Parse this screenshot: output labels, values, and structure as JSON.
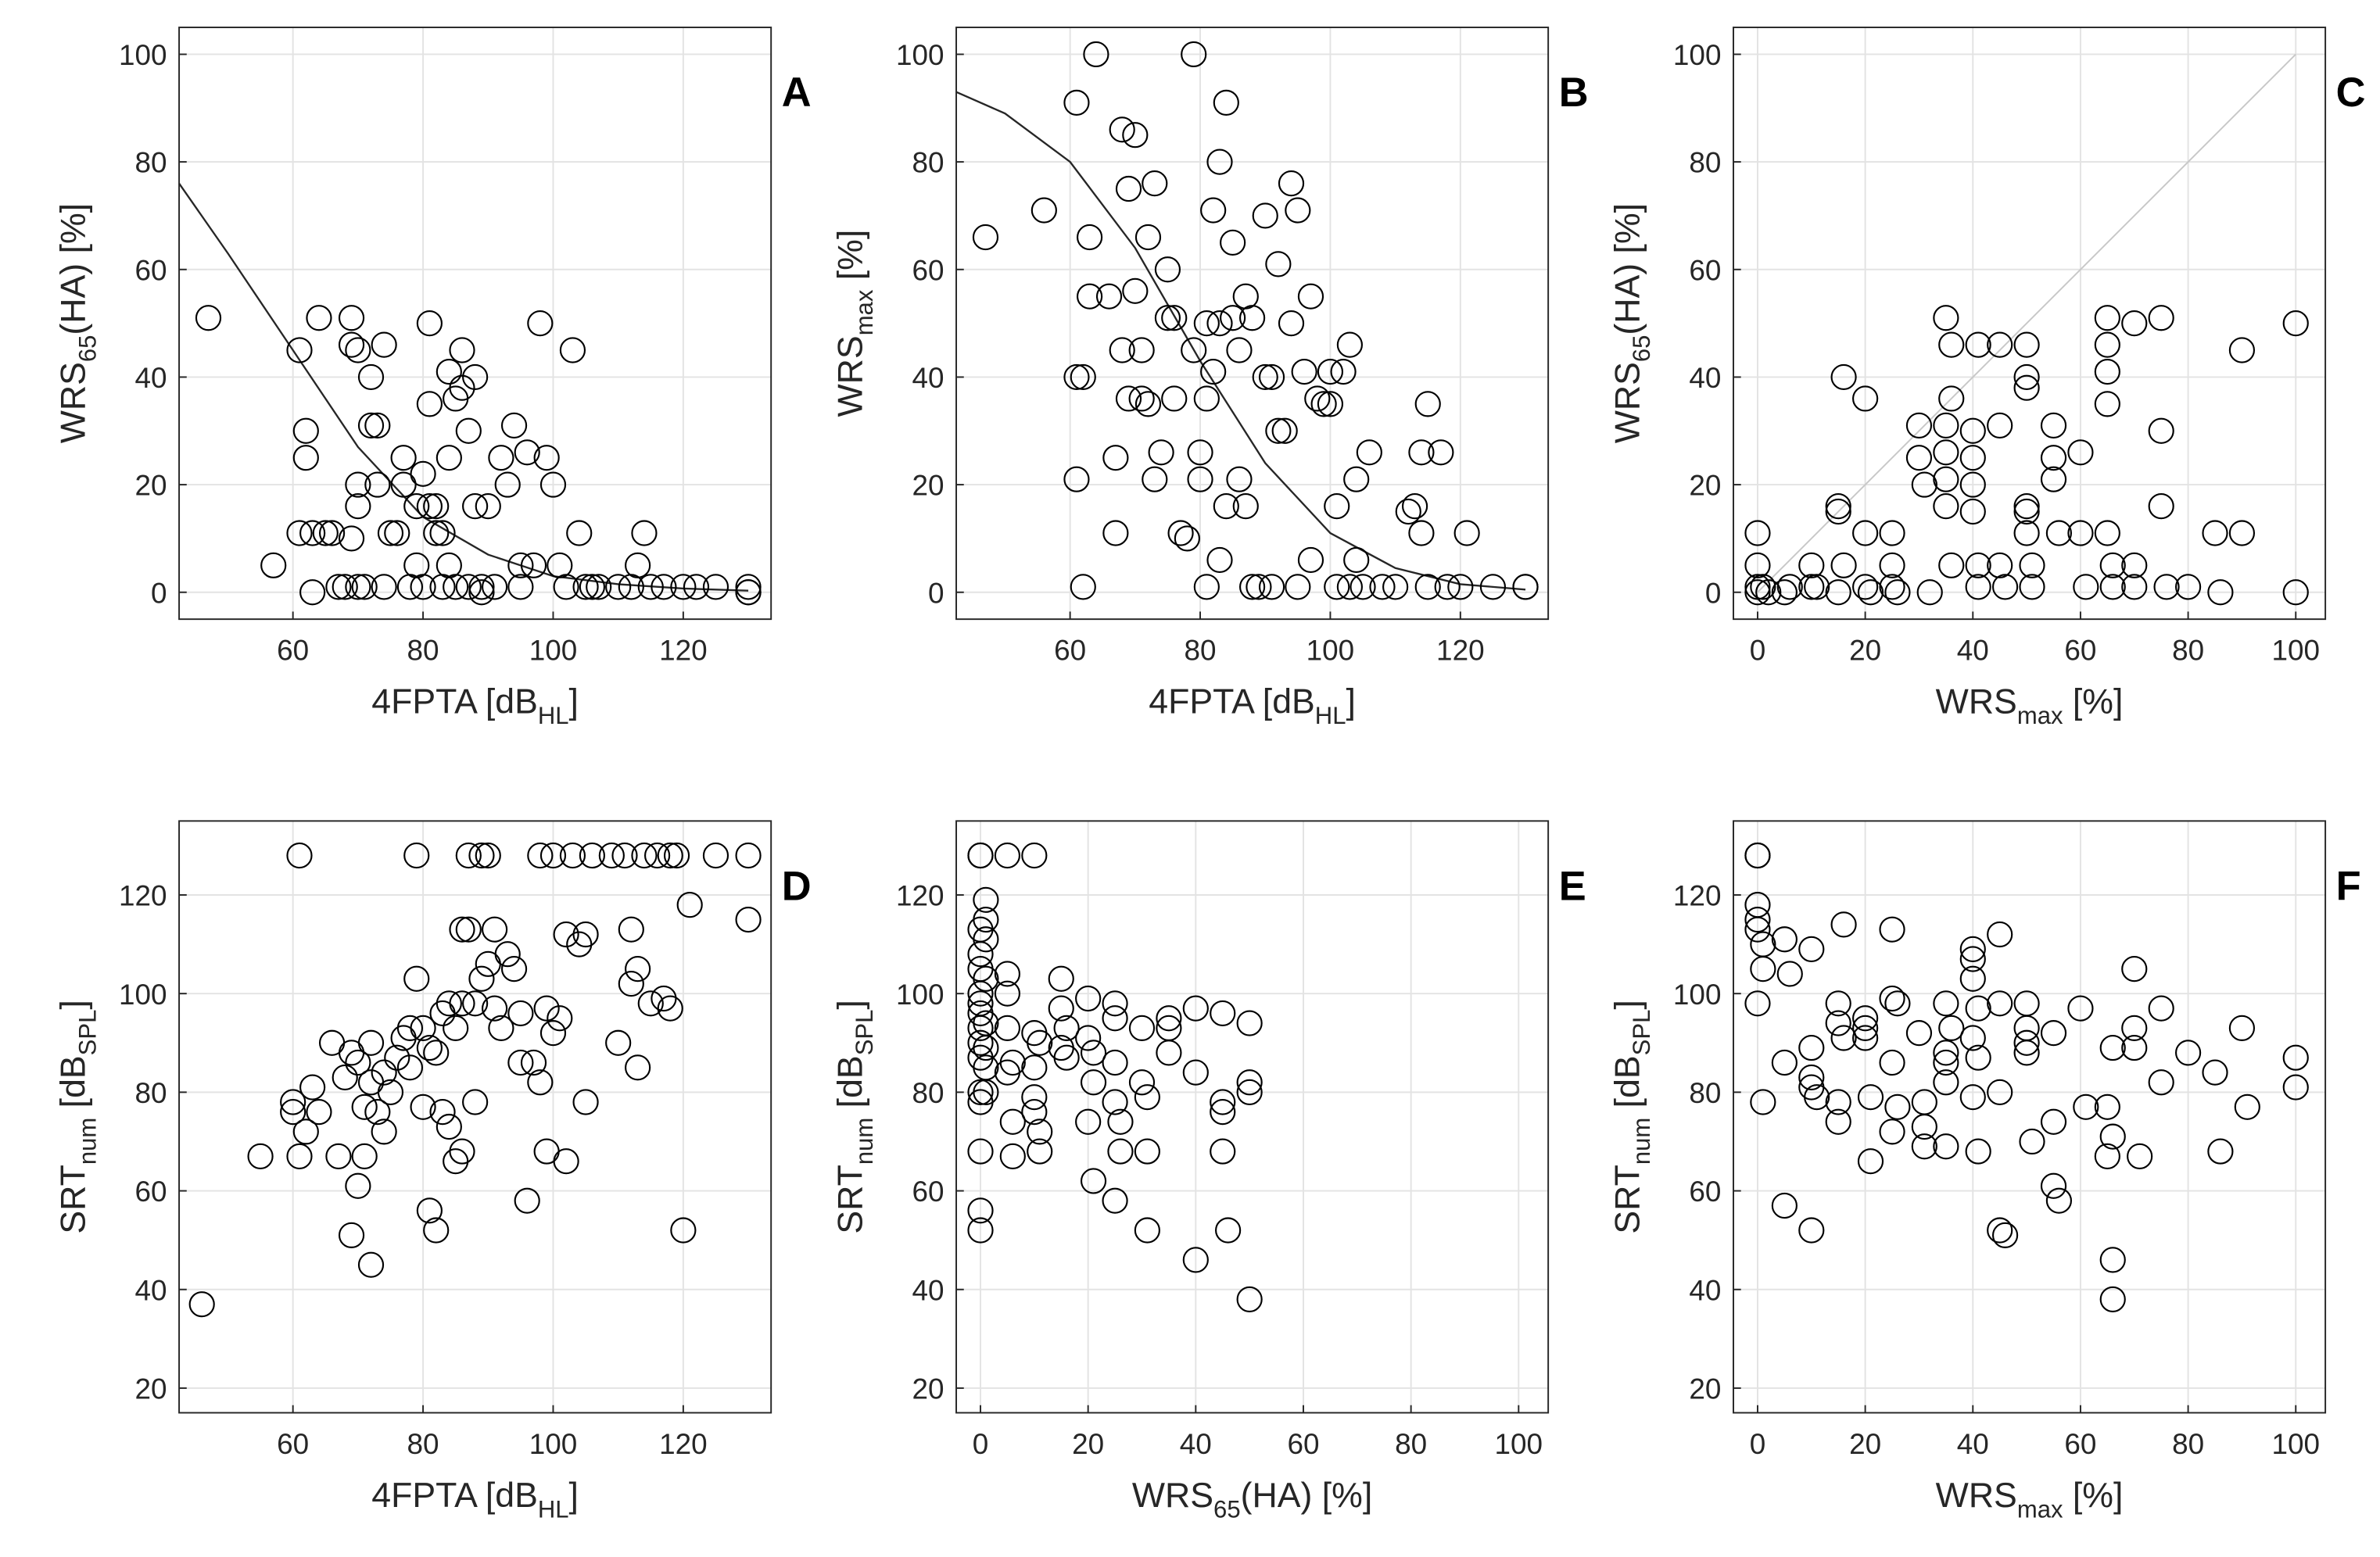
{
  "chart_data": [
    {
      "type": "scatter",
      "panel_label": "A",
      "xlabel": [
        "4FPTA [dB",
        "HL",
        "]"
      ],
      "ylabel": [
        "WRS",
        "65",
        "(HA) [%]"
      ],
      "xlim": [
        42.5,
        133.5
      ],
      "ylim": [
        -5,
        105
      ],
      "xticks": [
        60,
        80,
        100,
        120
      ],
      "yticks": [
        0,
        20,
        40,
        60,
        80,
        100
      ],
      "grid": true,
      "color": "#000000",
      "x": [
        47,
        57,
        61,
        61,
        62,
        62,
        63,
        63,
        64,
        65,
        66,
        67,
        68,
        69,
        69,
        69,
        70,
        70,
        70,
        70,
        71,
        72,
        72,
        73,
        73,
        74,
        74,
        75,
        76,
        77,
        77,
        78,
        79,
        79,
        80,
        80,
        81,
        81,
        81,
        82,
        82,
        83,
        83,
        84,
        84,
        84,
        85,
        85,
        86,
        86,
        87,
        87,
        88,
        88,
        89,
        89,
        90,
        91,
        92,
        93,
        94,
        95,
        95,
        96,
        97,
        98,
        99,
        100,
        101,
        102,
        103,
        104,
        105,
        106,
        107,
        110,
        112,
        113,
        114,
        115,
        117,
        120,
        122,
        125,
        130,
        130,
        130
      ],
      "values": [
        51,
        5,
        45,
        11,
        25,
        30,
        11,
        0,
        51,
        11,
        11,
        1,
        1,
        10,
        46,
        51,
        45,
        20,
        16,
        1,
        1,
        40,
        31,
        31,
        20,
        46,
        1,
        11,
        11,
        25,
        20,
        1,
        16,
        5,
        22,
        1,
        50,
        16,
        35,
        16,
        11,
        11,
        1,
        41,
        25,
        5,
        36,
        1,
        38,
        45,
        30,
        1,
        40,
        16,
        1,
        0,
        16,
        1,
        25,
        20,
        31,
        1,
        5,
        26,
        5,
        50,
        25,
        20,
        5,
        1,
        45,
        11,
        1,
        1,
        1,
        1,
        1,
        5,
        11,
        1,
        1,
        1,
        1,
        1,
        0,
        1,
        0
      ],
      "curve": {
        "x": [
          42.5,
          50,
          60,
          70,
          80,
          90,
          100,
          110,
          120,
          130
        ],
        "values": [
          76,
          63,
          45,
          27,
          14,
          7,
          3,
          1.5,
          0.7,
          0.3
        ]
      }
    },
    {
      "type": "scatter",
      "panel_label": "B",
      "xlabel": [
        "4FPTA [dB",
        "HL",
        "]"
      ],
      "ylabel": [
        "WRS",
        "max",
        " [%]"
      ],
      "xlim": [
        42.5,
        133.5
      ],
      "ylim": [
        -5,
        105
      ],
      "xticks": [
        60,
        80,
        100,
        120
      ],
      "yticks": [
        0,
        20,
        40,
        60,
        80,
        100
      ],
      "grid": true,
      "color": "#000000",
      "x": [
        47,
        56,
        61,
        61,
        61,
        62,
        62,
        63,
        63,
        64,
        66,
        67,
        67,
        68,
        68,
        69,
        69,
        70,
        70,
        71,
        71,
        72,
        72,
        73,
        73,
        74,
        75,
        75,
        76,
        76,
        77,
        78,
        79,
        79,
        80,
        80,
        81,
        81,
        81,
        82,
        82,
        83,
        83,
        83,
        84,
        84,
        85,
        85,
        86,
        86,
        87,
        87,
        88,
        88,
        89,
        90,
        90,
        91,
        91,
        92,
        92,
        93,
        94,
        94,
        95,
        95,
        96,
        97,
        97,
        98,
        99,
        100,
        100,
        101,
        101,
        102,
        103,
        103,
        104,
        104,
        105,
        106,
        108,
        110,
        112,
        113,
        114,
        114,
        115,
        115,
        117,
        118,
        120,
        121,
        125,
        130,
        130
      ],
      "values": [
        66,
        71,
        91,
        21,
        40,
        40,
        1,
        55,
        66,
        100,
        55,
        11,
        25,
        45,
        86,
        36,
        75,
        85,
        56,
        45,
        36,
        66,
        35,
        76,
        21,
        26,
        51,
        60,
        51,
        36,
        11,
        10,
        100,
        45,
        26,
        21,
        36,
        50,
        1,
        41,
        71,
        6,
        80,
        50,
        91,
        16,
        65,
        51,
        21,
        45,
        55,
        16,
        51,
        1,
        1,
        40,
        70,
        40,
        1,
        61,
        30,
        30,
        50,
        76,
        71,
        1,
        41,
        55,
        6,
        36,
        35,
        35,
        41,
        16,
        1,
        41,
        46,
        1,
        21,
        6,
        1,
        26,
        1,
        1,
        15,
        16,
        11,
        26,
        35,
        1,
        26,
        1,
        1,
        11,
        1,
        1,
        1
      ],
      "curve": {
        "x": [
          42.5,
          50,
          60,
          70,
          80,
          90,
          100,
          110,
          120,
          130
        ],
        "values": [
          93,
          89,
          80,
          64,
          43,
          24,
          11,
          4.5,
          1.5,
          0.5
        ]
      }
    },
    {
      "type": "scatter",
      "panel_label": "C",
      "xlabel": [
        "WRS",
        "max",
        " [%]"
      ],
      "ylabel": [
        "WRS",
        "65",
        "(HA) [%]"
      ],
      "xlim": [
        -4.5,
        105.5
      ],
      "ylim": [
        -5,
        105
      ],
      "xticks": [
        0,
        20,
        40,
        60,
        80,
        100
      ],
      "yticks": [
        0,
        20,
        40,
        60,
        80,
        100
      ],
      "grid": true,
      "color": "#000000",
      "x": [
        0,
        0,
        0,
        0,
        1,
        2,
        5,
        6,
        10,
        10,
        11,
        15,
        15,
        15,
        16,
        16,
        20,
        20,
        20,
        21,
        25,
        25,
        25,
        26,
        30,
        30,
        31,
        32,
        35,
        35,
        35,
        35,
        35,
        36,
        36,
        36,
        40,
        40,
        40,
        40,
        41,
        41,
        41,
        45,
        45,
        45,
        46,
        50,
        50,
        50,
        50,
        50,
        50,
        51,
        51,
        55,
        55,
        55,
        56,
        60,
        60,
        61,
        65,
        65,
        65,
        65,
        65,
        66,
        66,
        70,
        70,
        70,
        75,
        75,
        75,
        76,
        80,
        85,
        86,
        90,
        90,
        100,
        100
      ],
      "values": [
        11,
        5,
        1,
        0,
        1,
        0,
        0,
        1,
        5,
        1,
        1,
        16,
        15,
        0,
        40,
        5,
        36,
        11,
        1,
        0,
        11,
        1,
        5,
        0,
        31,
        25,
        20,
        0,
        51,
        31,
        26,
        21,
        16,
        46,
        36,
        5,
        30,
        25,
        15,
        20,
        46,
        1,
        5,
        46,
        31,
        5,
        1,
        40,
        38,
        46,
        16,
        15,
        11,
        5,
        1,
        31,
        25,
        21,
        11,
        26,
        11,
        1,
        51,
        46,
        41,
        35,
        11,
        5,
        1,
        50,
        5,
        1,
        51,
        30,
        16,
        1,
        1,
        11,
        0,
        45,
        11,
        50,
        0
      ],
      "reference_line": {
        "x": [
          0,
          100
        ],
        "values": [
          0,
          100
        ]
      }
    },
    {
      "type": "scatter",
      "panel_label": "D",
      "xlabel": [
        "4FPTA [dB",
        "HL",
        "]"
      ],
      "ylabel": [
        "SRT",
        "num",
        " [dB",
        "SPL",
        "]"
      ],
      "xlim": [
        42.5,
        133.5
      ],
      "ylim": [
        15,
        135
      ],
      "xticks": [
        60,
        80,
        100,
        120
      ],
      "yticks": [
        20,
        40,
        60,
        80,
        100,
        120
      ],
      "grid": true,
      "color": "#000000",
      "x": [
        46,
        55,
        60,
        60,
        61,
        61,
        62,
        63,
        64,
        66,
        67,
        68,
        69,
        69,
        70,
        70,
        71,
        71,
        72,
        72,
        72,
        73,
        74,
        74,
        75,
        76,
        77,
        78,
        78,
        79,
        79,
        80,
        80,
        81,
        81,
        82,
        82,
        83,
        83,
        84,
        84,
        85,
        85,
        86,
        86,
        86,
        87,
        87,
        88,
        88,
        89,
        89,
        90,
        90,
        91,
        91,
        92,
        93,
        94,
        95,
        95,
        96,
        97,
        98,
        98,
        99,
        99,
        100,
        100,
        101,
        102,
        102,
        103,
        104,
        105,
        105,
        106,
        109,
        110,
        111,
        112,
        112,
        113,
        113,
        114,
        115,
        116,
        117,
        118,
        118,
        119,
        120,
        121,
        125,
        130,
        130
      ],
      "values": [
        37,
        67,
        78,
        76,
        128,
        67,
        72,
        81,
        76,
        90,
        67,
        83,
        51,
        88,
        61,
        86,
        77,
        67,
        45,
        82,
        90,
        76,
        84,
        72,
        80,
        87,
        91,
        93,
        85,
        103,
        128,
        93,
        77,
        89,
        56,
        52,
        88,
        96,
        76,
        98,
        73,
        66,
        93,
        113,
        98,
        68,
        113,
        128,
        98,
        78,
        103,
        128,
        128,
        106,
        113,
        97,
        93,
        108,
        105,
        96,
        86,
        58,
        86,
        82,
        128,
        68,
        97,
        128,
        92,
        95,
        112,
        66,
        128,
        110,
        78,
        112,
        128,
        128,
        90,
        128,
        113,
        102,
        85,
        105,
        128,
        98,
        128,
        99,
        97,
        128,
        128,
        52,
        118,
        128,
        128,
        115
      ]
    },
    {
      "type": "scatter",
      "panel_label": "E",
      "xlabel": [
        "WRS",
        "65",
        "(HA) [%]"
      ],
      "ylabel": [
        "SRT",
        "num",
        " [dB",
        "SPL",
        "]"
      ],
      "xlim": [
        -4.5,
        105.5
      ],
      "ylim": [
        15,
        135
      ],
      "xticks": [
        0,
        20,
        40,
        60,
        80,
        100
      ],
      "yticks": [
        20,
        40,
        60,
        80,
        100,
        120
      ],
      "grid": true,
      "color": "#000000",
      "x": [
        0,
        0,
        0,
        0,
        0,
        0,
        0,
        0,
        0,
        0,
        0,
        0,
        0,
        0,
        0,
        0,
        1,
        1,
        1,
        1,
        1,
        1,
        1,
        1,
        5,
        5,
        5,
        5,
        5,
        6,
        6,
        6,
        10,
        10,
        10,
        10,
        10,
        11,
        11,
        11,
        15,
        15,
        15,
        16,
        16,
        20,
        20,
        20,
        21,
        21,
        21,
        25,
        25,
        25,
        25,
        25,
        26,
        26,
        30,
        30,
        31,
        31,
        31,
        35,
        35,
        35,
        40,
        40,
        40,
        45,
        45,
        45,
        45,
        46,
        50,
        50,
        50,
        50
      ],
      "values": [
        128,
        128,
        52,
        56,
        68,
        78,
        80,
        87,
        90,
        93,
        96,
        98,
        100,
        105,
        108,
        113,
        119,
        115,
        111,
        103,
        94,
        89,
        85,
        80,
        128,
        104,
        100,
        93,
        84,
        86,
        67,
        74,
        128,
        92,
        85,
        79,
        76,
        72,
        68,
        90,
        103,
        97,
        89,
        93,
        87,
        99,
        91,
        74,
        88,
        82,
        62,
        98,
        95,
        86,
        78,
        58,
        74,
        68,
        93,
        82,
        79,
        68,
        52,
        95,
        93,
        88,
        97,
        84,
        46,
        96,
        78,
        76,
        68,
        52,
        94,
        82,
        80,
        38
      ]
    },
    {
      "type": "scatter",
      "panel_label": "F",
      "xlabel": [
        "WRS",
        "max",
        " [%]"
      ],
      "ylabel": [
        "SRT",
        "num",
        " [dB",
        "SPL",
        "]"
      ],
      "xlim": [
        -4.5,
        105.5
      ],
      "ylim": [
        15,
        135
      ],
      "xticks": [
        0,
        20,
        40,
        60,
        80,
        100
      ],
      "yticks": [
        20,
        40,
        60,
        80,
        100,
        120
      ],
      "grid": true,
      "color": "#000000",
      "x": [
        0,
        0,
        0,
        0,
        0,
        1,
        1,
        0,
        1,
        5,
        5,
        5,
        6,
        10,
        10,
        10,
        10,
        10,
        11,
        15,
        15,
        15,
        15,
        16,
        16,
        20,
        20,
        20,
        21,
        21,
        25,
        25,
        25,
        25,
        26,
        26,
        30,
        31,
        31,
        31,
        35,
        35,
        35,
        35,
        35,
        36,
        40,
        40,
        40,
        40,
        40,
        41,
        41,
        41,
        45,
        45,
        45,
        45,
        46,
        50,
        50,
        50,
        50,
        51,
        55,
        55,
        55,
        56,
        60,
        61,
        65,
        65,
        66,
        66,
        66,
        66,
        70,
        70,
        70,
        71,
        75,
        75,
        80,
        85,
        86,
        90,
        91,
        100,
        100
      ],
      "values": [
        128,
        128,
        118,
        115,
        113,
        110,
        105,
        98,
        78,
        111,
        86,
        57,
        104,
        109,
        89,
        83,
        81,
        52,
        79,
        98,
        94,
        78,
        74,
        114,
        91,
        95,
        93,
        91,
        79,
        66,
        113,
        99,
        86,
        72,
        98,
        77,
        92,
        78,
        73,
        69,
        98,
        88,
        86,
        82,
        69,
        93,
        109,
        107,
        103,
        91,
        79,
        97,
        87,
        68,
        112,
        98,
        80,
        52,
        51,
        98,
        93,
        90,
        88,
        70,
        92,
        74,
        61,
        58,
        97,
        77,
        77,
        67,
        71,
        46,
        38,
        89,
        105,
        93,
        89,
        67,
        97,
        82,
        88,
        84,
        68,
        93,
        77,
        87,
        81
      ]
    }
  ]
}
